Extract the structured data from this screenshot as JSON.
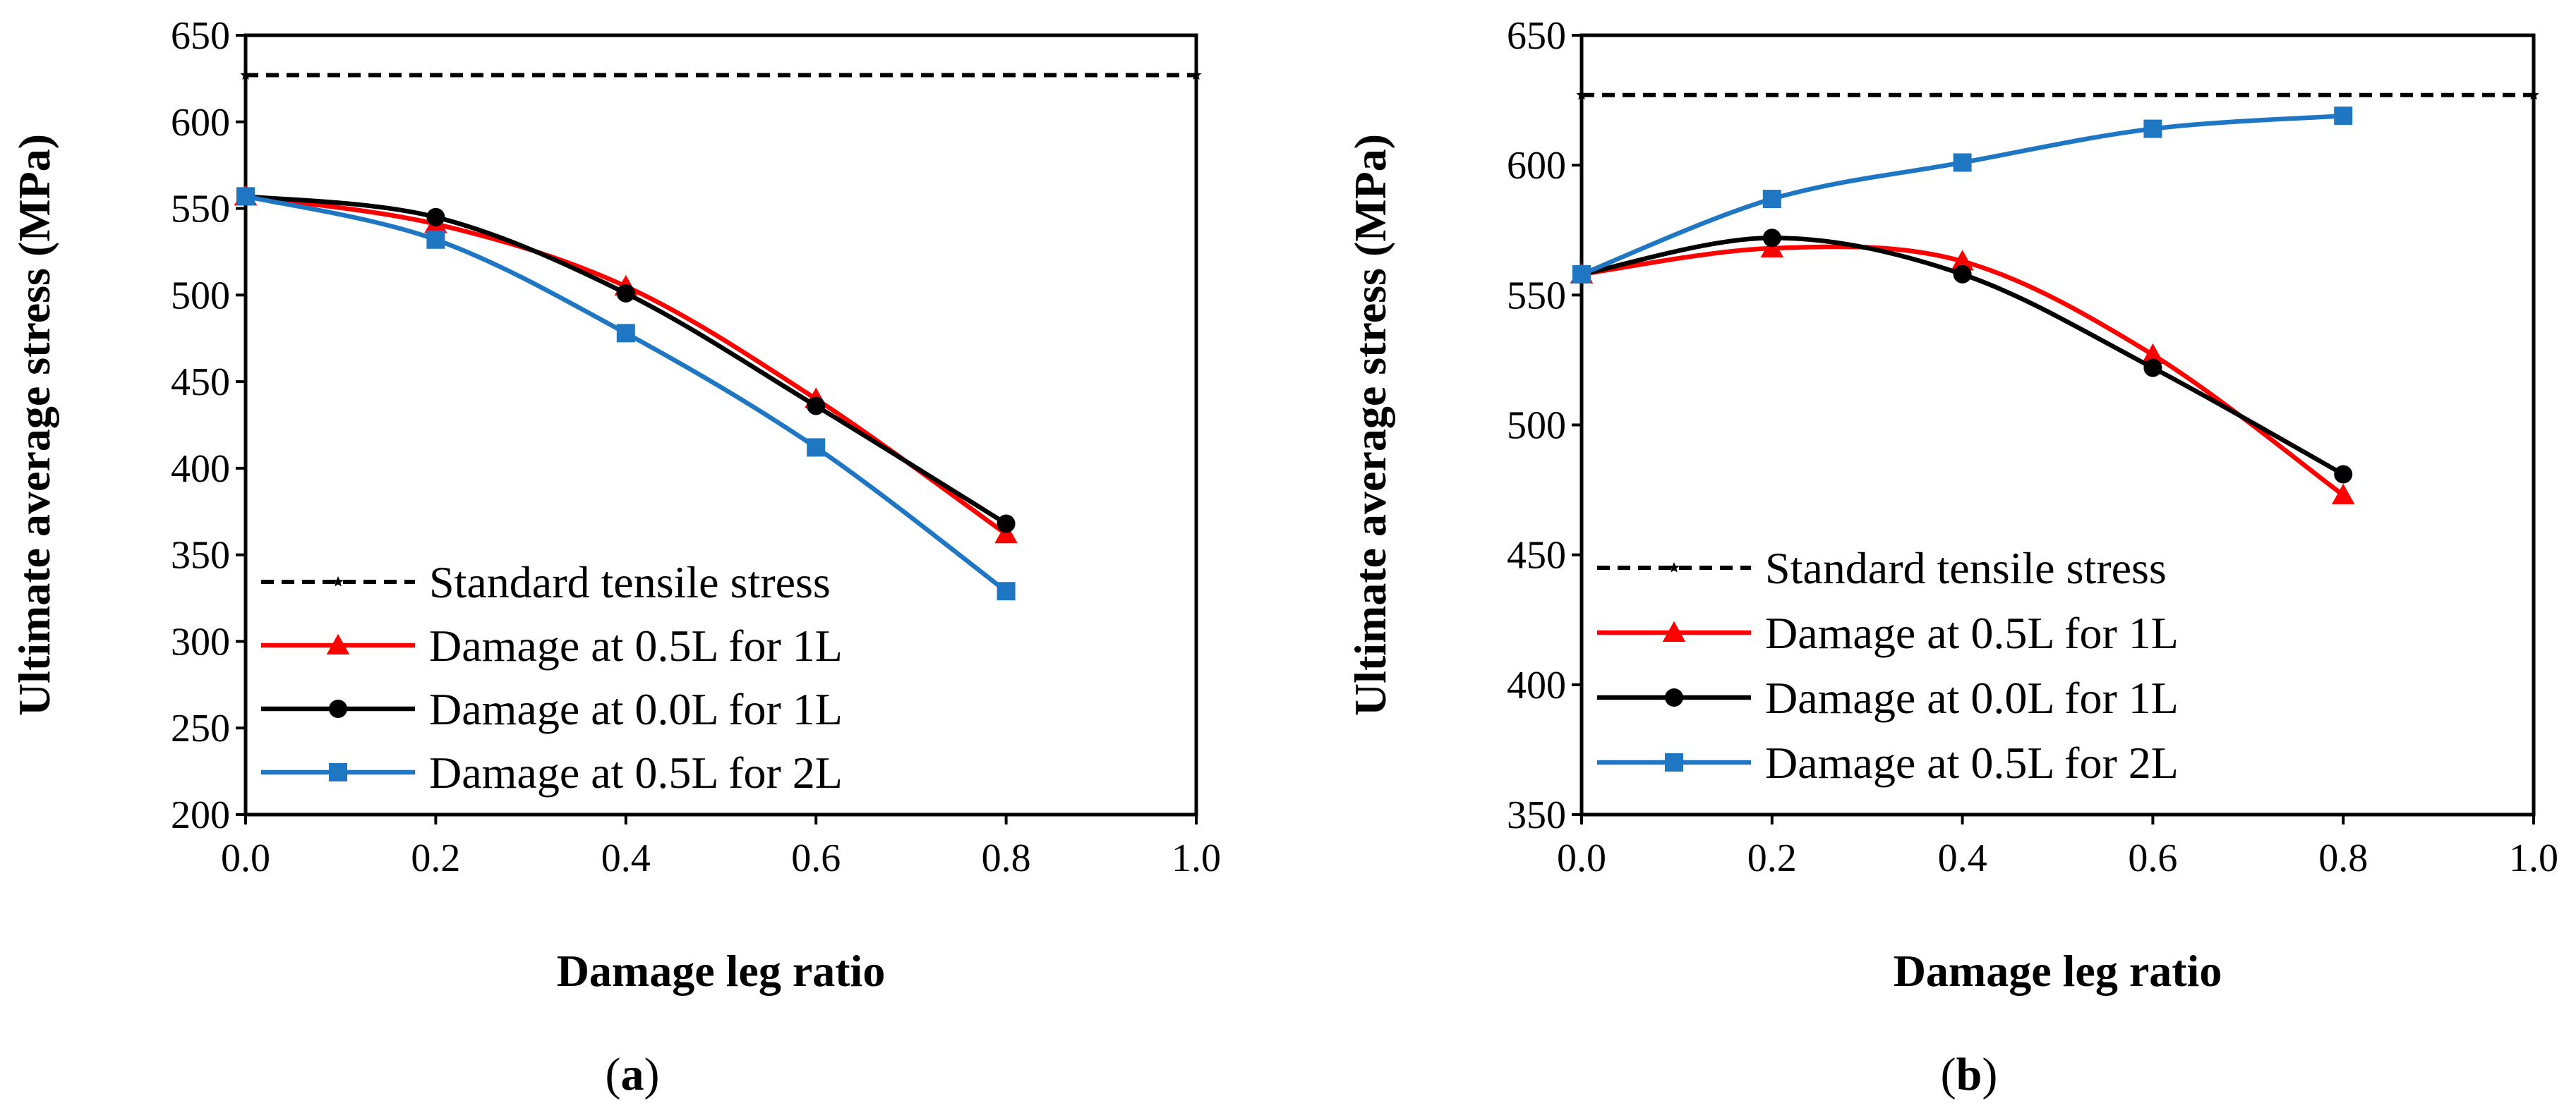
{
  "chart_data": [
    {
      "type": "line",
      "panel_label": "a",
      "caption_open": "(",
      "caption_close": ")",
      "xlabel": "Damage leg ratio",
      "ylabel": "Ultimate average stress (MPa)",
      "xlim": [
        0,
        1
      ],
      "ylim": [
        200,
        650
      ],
      "xticks": [
        "0.0",
        "0.2",
        "0.4",
        "0.6",
        "0.8",
        "1.0"
      ],
      "xtick_values": [
        0,
        0.2,
        0.4,
        0.6,
        0.8,
        1.0
      ],
      "yticks": [
        200,
        250,
        300,
        350,
        400,
        450,
        500,
        550,
        600,
        650
      ],
      "legend_position": "bottom-left",
      "series": [
        {
          "name": "Standard tensile stress",
          "color": "#000000",
          "dash": true,
          "marker": "star",
          "x": [
            0,
            1.0
          ],
          "values": [
            627,
            627
          ]
        },
        {
          "name": "Damage at 0.5L for 1L",
          "color": "#ff0000",
          "dash": false,
          "marker": "triangle",
          "x": [
            0,
            0.2,
            0.4,
            0.6,
            0.8
          ],
          "values": [
            557,
            541,
            505,
            440,
            362
          ]
        },
        {
          "name": "Damage at 0.0L for 1L",
          "color": "#000000",
          "dash": false,
          "marker": "circle",
          "x": [
            0,
            0.2,
            0.4,
            0.6,
            0.8
          ],
          "values": [
            557,
            545,
            501,
            436,
            368
          ]
        },
        {
          "name": "Damage at 0.5L for 2L",
          "color": "#1f77c4",
          "dash": false,
          "marker": "square",
          "x": [
            0,
            0.2,
            0.4,
            0.6,
            0.8
          ],
          "values": [
            557,
            532,
            478,
            412,
            329
          ]
        }
      ]
    },
    {
      "type": "line",
      "panel_label": "b",
      "caption_open": "(",
      "caption_close": ")",
      "xlabel": "Damage leg ratio",
      "ylabel": "Ultimate average stress (MPa)",
      "xlim": [
        0,
        1
      ],
      "ylim": [
        350,
        650
      ],
      "xticks": [
        "0.0",
        "0.2",
        "0.4",
        "0.6",
        "0.8",
        "1.0"
      ],
      "xtick_values": [
        0,
        0.2,
        0.4,
        0.6,
        0.8,
        1.0
      ],
      "yticks": [
        350,
        400,
        450,
        500,
        550,
        600,
        650
      ],
      "legend_position": "bottom-left",
      "series": [
        {
          "name": "Standard tensile stress",
          "color": "#000000",
          "dash": true,
          "marker": "star",
          "x": [
            0,
            1.0
          ],
          "values": [
            627,
            627
          ]
        },
        {
          "name": "Damage at 0.5L for 1L",
          "color": "#ff0000",
          "dash": false,
          "marker": "triangle",
          "x": [
            0,
            0.2,
            0.4,
            0.6,
            0.8
          ],
          "values": [
            558,
            568,
            563,
            527,
            473
          ]
        },
        {
          "name": "Damage at 0.0L for 1L",
          "color": "#000000",
          "dash": false,
          "marker": "circle",
          "x": [
            0,
            0.2,
            0.4,
            0.6,
            0.8
          ],
          "values": [
            558,
            572,
            558,
            522,
            481
          ]
        },
        {
          "name": "Damage at 0.5L for 2L",
          "color": "#1f77c4",
          "dash": false,
          "marker": "square",
          "x": [
            0,
            0.2,
            0.4,
            0.6,
            0.8
          ],
          "values": [
            558,
            587,
            601,
            614,
            619
          ]
        }
      ]
    }
  ]
}
